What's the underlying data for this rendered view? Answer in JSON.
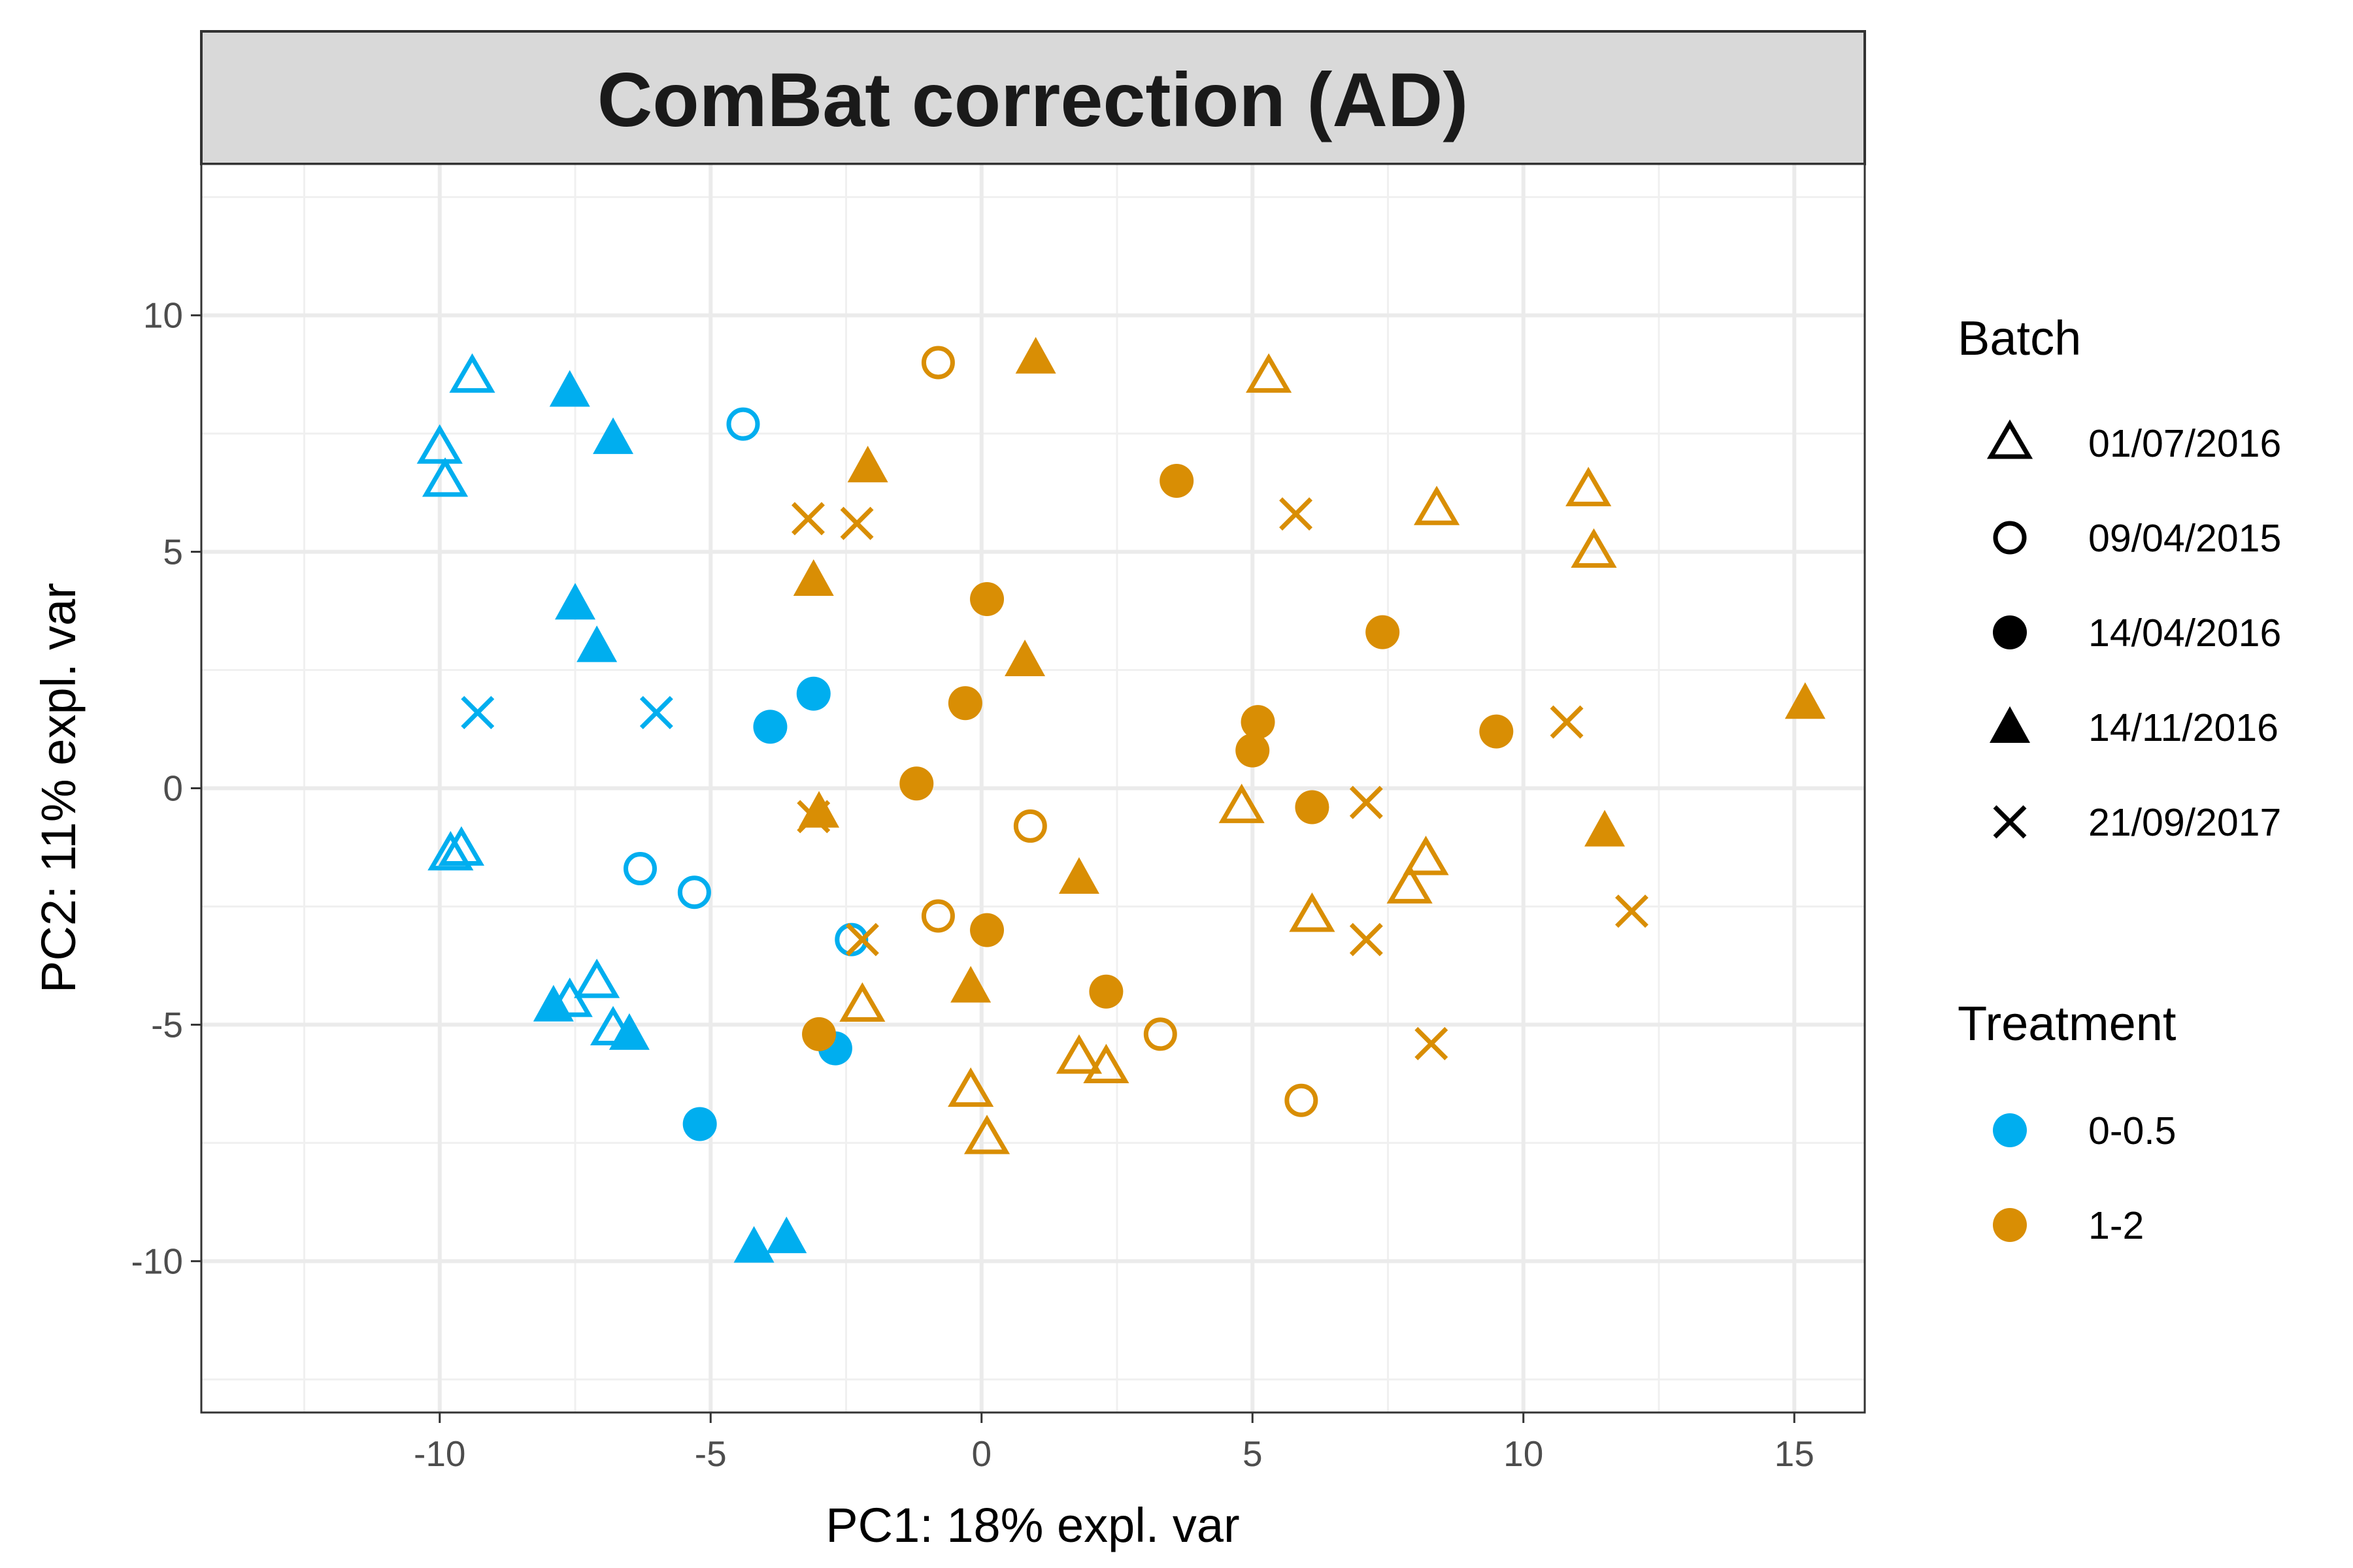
{
  "chart_data": {
    "type": "scatter",
    "title": "ComBat correction (AD)",
    "xlabel": "PC1: 18% expl. var",
    "ylabel": "PC2: 11% expl. var",
    "xlim": [
      -14.4,
      16.3
    ],
    "ylim": [
      -13.2,
      13.2
    ],
    "x_ticks": [
      -10,
      -5,
      0,
      5,
      10,
      15
    ],
    "y_ticks": [
      -10,
      -5,
      0,
      5,
      10
    ],
    "x_tick_labels": [
      "-10",
      "-5",
      "0",
      "5",
      "10",
      "15"
    ],
    "y_tick_labels": [
      "-10",
      "-5",
      "0",
      "5",
      "10"
    ],
    "grid": true,
    "legend_position": "right",
    "legend": {
      "batch_title": "Batch",
      "treatment_title": "Treatment",
      "batches": [
        {
          "label": "01/07/2016",
          "shape": "triangle-open"
        },
        {
          "label": "09/04/2015",
          "shape": "circle-open"
        },
        {
          "label": "14/04/2016",
          "shape": "circle-filled"
        },
        {
          "label": "14/11/2016",
          "shape": "triangle-filled"
        },
        {
          "label": "21/09/2017",
          "shape": "cross"
        }
      ],
      "treatments": [
        {
          "label": "0-0.5",
          "color": "#00AEEF"
        },
        {
          "label": "1-2",
          "color": "#D98E04"
        }
      ]
    },
    "colors": {
      "0-0.5": "#00AEEF",
      "1-2": "#D98E04"
    },
    "points": [
      {
        "x": -9.4,
        "y": 8.7,
        "batch": "01/07/2016",
        "treatment": "0-0.5"
      },
      {
        "x": -10.0,
        "y": 7.2,
        "batch": "01/07/2016",
        "treatment": "0-0.5"
      },
      {
        "x": -9.9,
        "y": 6.5,
        "batch": "01/07/2016",
        "treatment": "0-0.5"
      },
      {
        "x": -9.6,
        "y": -1.3,
        "batch": "01/07/2016",
        "treatment": "0-0.5"
      },
      {
        "x": -9.8,
        "y": -1.4,
        "batch": "01/07/2016",
        "treatment": "0-0.5"
      },
      {
        "x": -7.1,
        "y": -4.1,
        "batch": "01/07/2016",
        "treatment": "0-0.5"
      },
      {
        "x": -7.6,
        "y": -4.5,
        "batch": "01/07/2016",
        "treatment": "0-0.5"
      },
      {
        "x": -6.8,
        "y": -5.1,
        "batch": "01/07/2016",
        "treatment": "0-0.5"
      },
      {
        "x": -4.4,
        "y": 7.7,
        "batch": "09/04/2015",
        "treatment": "0-0.5"
      },
      {
        "x": -6.3,
        "y": -1.7,
        "batch": "09/04/2015",
        "treatment": "0-0.5"
      },
      {
        "x": -5.3,
        "y": -2.2,
        "batch": "09/04/2015",
        "treatment": "0-0.5"
      },
      {
        "x": -2.4,
        "y": -3.2,
        "batch": "09/04/2015",
        "treatment": "0-0.5"
      },
      {
        "x": -3.1,
        "y": 2.0,
        "batch": "14/04/2016",
        "treatment": "0-0.5"
      },
      {
        "x": -3.9,
        "y": 1.3,
        "batch": "14/04/2016",
        "treatment": "0-0.5"
      },
      {
        "x": -2.7,
        "y": -5.5,
        "batch": "14/04/2016",
        "treatment": "0-0.5"
      },
      {
        "x": -5.2,
        "y": -7.1,
        "batch": "14/04/2016",
        "treatment": "0-0.5"
      },
      {
        "x": -7.6,
        "y": 8.4,
        "batch": "14/11/2016",
        "treatment": "0-0.5"
      },
      {
        "x": -6.8,
        "y": 7.4,
        "batch": "14/11/2016",
        "treatment": "0-0.5"
      },
      {
        "x": -7.5,
        "y": 3.9,
        "batch": "14/11/2016",
        "treatment": "0-0.5"
      },
      {
        "x": -7.1,
        "y": 3.0,
        "batch": "14/11/2016",
        "treatment": "0-0.5"
      },
      {
        "x": -7.9,
        "y": -4.6,
        "batch": "14/11/2016",
        "treatment": "0-0.5"
      },
      {
        "x": -6.5,
        "y": -5.2,
        "batch": "14/11/2016",
        "treatment": "0-0.5"
      },
      {
        "x": -4.2,
        "y": -9.7,
        "batch": "14/11/2016",
        "treatment": "0-0.5"
      },
      {
        "x": -3.6,
        "y": -9.5,
        "batch": "14/11/2016",
        "treatment": "0-0.5"
      },
      {
        "x": -9.3,
        "y": 1.6,
        "batch": "21/09/2017",
        "treatment": "0-0.5"
      },
      {
        "x": -6.0,
        "y": 1.6,
        "batch": "21/09/2017",
        "treatment": "0-0.5"
      },
      {
        "x": 5.3,
        "y": 8.7,
        "batch": "01/07/2016",
        "treatment": "1-2"
      },
      {
        "x": 8.4,
        "y": 5.9,
        "batch": "01/07/2016",
        "treatment": "1-2"
      },
      {
        "x": 11.2,
        "y": 6.3,
        "batch": "01/07/2016",
        "treatment": "1-2"
      },
      {
        "x": 11.3,
        "y": 5.0,
        "batch": "01/07/2016",
        "treatment": "1-2"
      },
      {
        "x": 4.8,
        "y": -0.4,
        "batch": "01/07/2016",
        "treatment": "1-2"
      },
      {
        "x": 8.2,
        "y": -1.5,
        "batch": "01/07/2016",
        "treatment": "1-2"
      },
      {
        "x": 7.9,
        "y": -2.1,
        "batch": "01/07/2016",
        "treatment": "1-2"
      },
      {
        "x": 6.1,
        "y": -2.7,
        "batch": "01/07/2016",
        "treatment": "1-2"
      },
      {
        "x": -2.2,
        "y": -4.6,
        "batch": "01/07/2016",
        "treatment": "1-2"
      },
      {
        "x": 1.8,
        "y": -5.7,
        "batch": "01/07/2016",
        "treatment": "1-2"
      },
      {
        "x": 2.3,
        "y": -5.9,
        "batch": "01/07/2016",
        "treatment": "1-2"
      },
      {
        "x": -0.2,
        "y": -6.4,
        "batch": "01/07/2016",
        "treatment": "1-2"
      },
      {
        "x": 0.1,
        "y": -7.4,
        "batch": "01/07/2016",
        "treatment": "1-2"
      },
      {
        "x": -0.8,
        "y": 9.0,
        "batch": "09/04/2015",
        "treatment": "1-2"
      },
      {
        "x": 0.9,
        "y": -0.8,
        "batch": "09/04/2015",
        "treatment": "1-2"
      },
      {
        "x": -0.8,
        "y": -2.7,
        "batch": "09/04/2015",
        "treatment": "1-2"
      },
      {
        "x": 3.3,
        "y": -5.2,
        "batch": "09/04/2015",
        "treatment": "1-2"
      },
      {
        "x": 5.9,
        "y": -6.6,
        "batch": "09/04/2015",
        "treatment": "1-2"
      },
      {
        "x": 3.6,
        "y": 6.5,
        "batch": "14/04/2016",
        "treatment": "1-2"
      },
      {
        "x": 0.1,
        "y": 4.0,
        "batch": "14/04/2016",
        "treatment": "1-2"
      },
      {
        "x": 7.4,
        "y": 3.3,
        "batch": "14/04/2016",
        "treatment": "1-2"
      },
      {
        "x": -0.3,
        "y": 1.8,
        "batch": "14/04/2016",
        "treatment": "1-2"
      },
      {
        "x": 5.1,
        "y": 1.4,
        "batch": "14/04/2016",
        "treatment": "1-2"
      },
      {
        "x": 5.0,
        "y": 0.8,
        "batch": "14/04/2016",
        "treatment": "1-2"
      },
      {
        "x": 9.5,
        "y": 1.2,
        "batch": "14/04/2016",
        "treatment": "1-2"
      },
      {
        "x": -1.2,
        "y": 0.1,
        "batch": "14/04/2016",
        "treatment": "1-2"
      },
      {
        "x": 6.1,
        "y": -0.4,
        "batch": "14/04/2016",
        "treatment": "1-2"
      },
      {
        "x": 0.1,
        "y": -3.0,
        "batch": "14/04/2016",
        "treatment": "1-2"
      },
      {
        "x": 2.3,
        "y": -4.3,
        "batch": "14/04/2016",
        "treatment": "1-2"
      },
      {
        "x": -3.0,
        "y": -5.2,
        "batch": "14/04/2016",
        "treatment": "1-2"
      },
      {
        "x": 1.0,
        "y": 9.1,
        "batch": "14/11/2016",
        "treatment": "1-2"
      },
      {
        "x": -2.1,
        "y": 6.8,
        "batch": "14/11/2016",
        "treatment": "1-2"
      },
      {
        "x": -3.1,
        "y": 4.4,
        "batch": "14/11/2016",
        "treatment": "1-2"
      },
      {
        "x": 0.8,
        "y": 2.7,
        "batch": "14/11/2016",
        "treatment": "1-2"
      },
      {
        "x": 15.2,
        "y": 1.8,
        "batch": "14/11/2016",
        "treatment": "1-2"
      },
      {
        "x": -3.0,
        "y": -0.5,
        "batch": "14/11/2016",
        "treatment": "1-2"
      },
      {
        "x": 11.5,
        "y": -0.9,
        "batch": "14/11/2016",
        "treatment": "1-2"
      },
      {
        "x": 1.8,
        "y": -1.9,
        "batch": "14/11/2016",
        "treatment": "1-2"
      },
      {
        "x": -0.2,
        "y": -4.2,
        "batch": "14/11/2016",
        "treatment": "1-2"
      },
      {
        "x": -3.2,
        "y": 5.7,
        "batch": "21/09/2017",
        "treatment": "1-2"
      },
      {
        "x": -2.3,
        "y": 5.6,
        "batch": "21/09/2017",
        "treatment": "1-2"
      },
      {
        "x": 5.8,
        "y": 5.8,
        "batch": "21/09/2017",
        "treatment": "1-2"
      },
      {
        "x": 10.8,
        "y": 1.4,
        "batch": "21/09/2017",
        "treatment": "1-2"
      },
      {
        "x": -3.1,
        "y": -0.6,
        "batch": "21/09/2017",
        "treatment": "1-2"
      },
      {
        "x": 7.1,
        "y": -0.3,
        "batch": "21/09/2017",
        "treatment": "1-2"
      },
      {
        "x": 12.0,
        "y": -2.6,
        "batch": "21/09/2017",
        "treatment": "1-2"
      },
      {
        "x": -2.2,
        "y": -3.2,
        "batch": "21/09/2017",
        "treatment": "1-2"
      },
      {
        "x": 7.1,
        "y": -3.2,
        "batch": "21/09/2017",
        "treatment": "1-2"
      },
      {
        "x": 8.3,
        "y": -5.4,
        "batch": "21/09/2017",
        "treatment": "1-2"
      }
    ]
  }
}
